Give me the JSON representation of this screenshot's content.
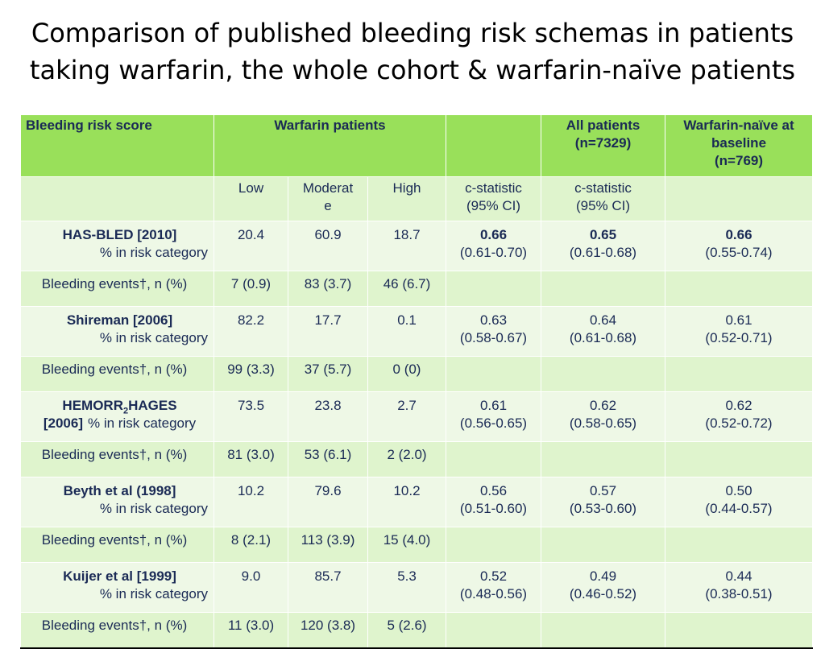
{
  "title": {
    "line1": "Comparison of published bleeding risk schemas in patients",
    "line2": "taking warfarin, the whole cohort & warfarin-naïve patients"
  },
  "header": {
    "score": "Bleeding risk score",
    "warfarin": "Warfarin patients",
    "all_line1": "All patients",
    "all_line2": "(n=7329)",
    "naive_line1": "Warfarin-naïve at",
    "naive_line2": "baseline",
    "naive_line3": "(n=769)"
  },
  "subheader": {
    "low": "Low",
    "moderate_line1": "Moderat",
    "moderate_line2": "e",
    "high": "High",
    "cstat1_line1": "c-statistic",
    "cstat1_line2": "(95% CI)",
    "cstat2_line1": "c-statistic",
    "cstat2_line2": "(95% CI)"
  },
  "labels": {
    "pct_category": "% in risk category",
    "bleeding_events": "Bleeding events†, n (%)"
  },
  "scores": [
    {
      "name": "HAS-BLED [2010]",
      "low": "20.4",
      "moderate": "60.9",
      "high": "18.7",
      "c_warfarin": "0.66",
      "ci_warfarin": "(0.61-0.70)",
      "c_all": "0.65",
      "ci_all": "(0.61-0.68)",
      "c_naive": "0.66",
      "ci_naive": "(0.55-0.74)",
      "ev_low": "7 (0.9)",
      "ev_moderate": "83 (3.7)",
      "ev_high": "46 (6.7)"
    },
    {
      "name": "Shireman [2006]",
      "low": "82.2",
      "moderate": "17.7",
      "high": "0.1",
      "c_warfarin": "0.63",
      "ci_warfarin": "(0.58-0.67)",
      "c_all": "0.64",
      "ci_all": "(0.61-0.68)",
      "c_naive": "0.61",
      "ci_naive": "(0.52-0.71)",
      "ev_low": "99 (3.3)",
      "ev_moderate": "37 (5.7)",
      "ev_high": "0 (0)"
    },
    {
      "name_part1": "HEMORR",
      "name_sub": "2",
      "name_part2": "HAGES",
      "name_line2": "[2006]",
      "low": "73.5",
      "moderate": "23.8",
      "high": "2.7",
      "c_warfarin": "0.61",
      "ci_warfarin": "(0.56-0.65)",
      "c_all": "0.62",
      "ci_all": "(0.58-0.65)",
      "c_naive": "0.62",
      "ci_naive": "(0.52-0.72)",
      "ev_low": "81 (3.0)",
      "ev_moderate": "53 (6.1)",
      "ev_high": "2 (2.0)"
    },
    {
      "name": "Beyth et al (1998]",
      "low": "10.2",
      "moderate": "79.6",
      "high": "10.2",
      "c_warfarin": "0.56",
      "ci_warfarin": "(0.51-0.60)",
      "c_all": "0.57",
      "ci_all": "(0.53-0.60)",
      "c_naive": "0.50",
      "ci_naive": "(0.44-0.57)",
      "ev_low": "8 (2.1)",
      "ev_moderate": "113 (3.9)",
      "ev_high": "15 (4.0)"
    },
    {
      "name": "Kuijer et al [1999]",
      "low": "9.0",
      "moderate": "85.7",
      "high": "5.3",
      "c_warfarin": "0.52",
      "ci_warfarin": "(0.48-0.56)",
      "c_all": "0.49",
      "ci_all": "(0.46-0.52)",
      "c_naive": "0.44",
      "ci_naive": "(0.38-0.51)",
      "ev_low": "11 (3.0)",
      "ev_moderate": "120 (3.8)",
      "ev_high": "5 (2.6)"
    }
  ]
}
